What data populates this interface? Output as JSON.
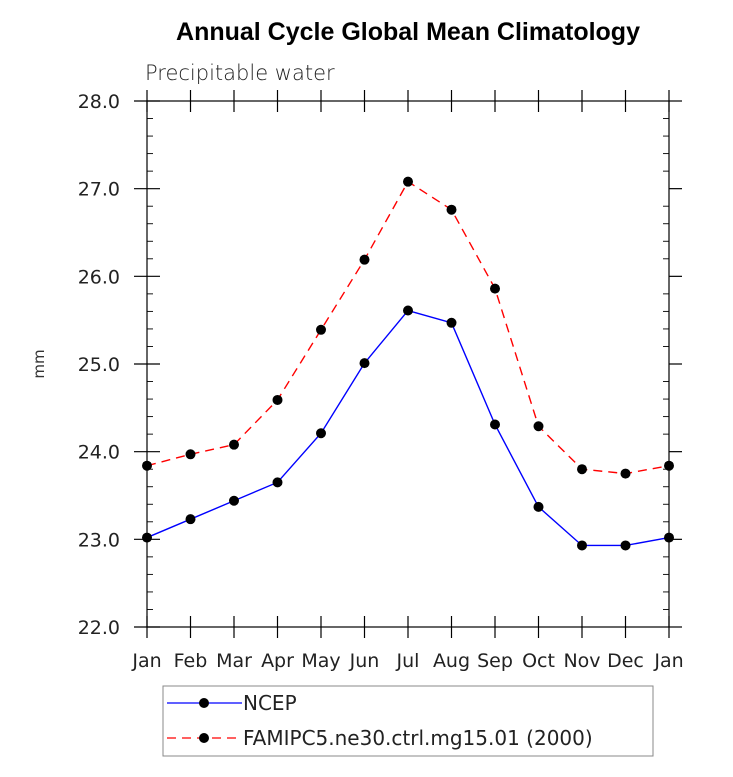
{
  "chart_data": {
    "type": "line",
    "title": "Annual Cycle Global Mean Climatology",
    "subtitle": "Precipitable water",
    "xlabel": "",
    "ylabel": "mm",
    "categories": [
      "Jan",
      "Feb",
      "Mar",
      "Apr",
      "May",
      "Jun",
      "Jul",
      "Aug",
      "Sep",
      "Oct",
      "Nov",
      "Dec",
      "Jan"
    ],
    "ylim": [
      22.0,
      28.0
    ],
    "yticks": [
      "22.0",
      "23.0",
      "24.0",
      "25.0",
      "26.0",
      "27.0",
      "28.0"
    ],
    "yticks_values": [
      22,
      23,
      24,
      25,
      26,
      27,
      28
    ],
    "grid": false,
    "legend_position": "bottom",
    "series": [
      {
        "name": "NCEP",
        "color": "#0000ff",
        "style": "solid",
        "marker": "filled-circle",
        "values": [
          23.02,
          23.23,
          23.44,
          23.65,
          24.21,
          25.01,
          25.61,
          25.47,
          24.31,
          23.37,
          22.93,
          22.93,
          23.02
        ]
      },
      {
        "name": "FAMIPC5.ne30.ctrl.mg15.01 (2000)",
        "color": "#ff0000",
        "style": "dashed",
        "marker": "filled-circle",
        "values": [
          23.84,
          23.97,
          24.08,
          24.59,
          25.39,
          26.19,
          27.08,
          26.76,
          25.86,
          24.29,
          23.8,
          23.75,
          23.84
        ]
      }
    ]
  }
}
